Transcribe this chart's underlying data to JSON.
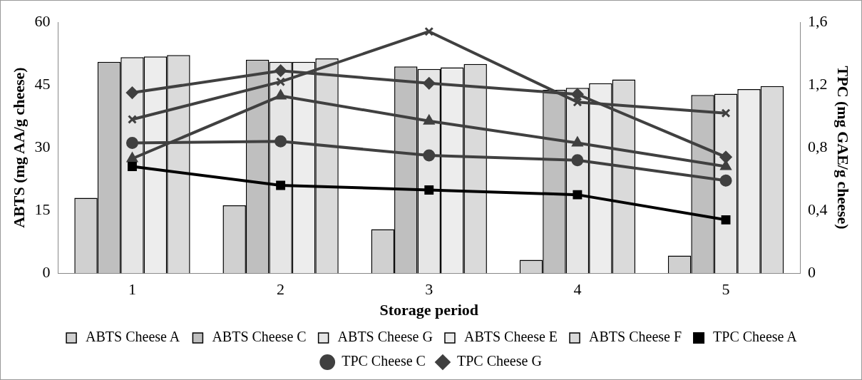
{
  "chart_data": {
    "type": "bar",
    "xlabel": "Storage period",
    "ylabel": "ABTS (mg AA/g cheese)",
    "y2label": "TPC (mg GAE/g cheese)",
    "categories": [
      "1",
      "2",
      "3",
      "4",
      "5"
    ],
    "ylim": [
      0,
      60
    ],
    "yticks": [
      0,
      15,
      30,
      45,
      60
    ],
    "y2lim": [
      0,
      1.6
    ],
    "y2ticks": [
      0,
      {
        "value": 0.4,
        "label": "0,4"
      },
      {
        "value": 0.8,
        "label": "0,8"
      },
      {
        "value": 1.2,
        "label": "1,2"
      },
      {
        "value": 1.6,
        "label": "1,6"
      }
    ],
    "grid": false,
    "legend": "bottom",
    "series": [
      {
        "name": "ABTS Cheese A",
        "color": "#d0d0d0",
        "values": [
          18.0,
          16.2,
          10.5,
          3.2,
          4.2
        ]
      },
      {
        "name": "ABTS Cheese C",
        "color": "#bfbfbf",
        "values": [
          50.5,
          51.0,
          49.4,
          43.8,
          42.6
        ]
      },
      {
        "name": "ABTS Cheese G",
        "color": "#e6e6e6",
        "values": [
          51.6,
          50.5,
          48.8,
          44.3,
          42.9
        ]
      },
      {
        "name": "ABTS Cheese E",
        "color": "#ededed",
        "values": [
          51.8,
          50.5,
          49.2,
          45.4,
          44.0
        ]
      },
      {
        "name": "ABTS Cheese F",
        "color": "#dadada",
        "values": [
          52.1,
          51.3,
          50.0,
          46.3,
          44.7
        ]
      },
      {
        "name": "TPC Cheese A",
        "type": "line",
        "axis": "y2",
        "marker": "square",
        "color": "#000000",
        "values": [
          0.68,
          0.56,
          0.53,
          0.5,
          0.34
        ]
      },
      {
        "name": "TPC Cheese C",
        "type": "line",
        "axis": "y2",
        "marker": "circle",
        "color": "#404040",
        "values": [
          0.83,
          0.84,
          0.75,
          0.72,
          0.59
        ]
      },
      {
        "name": "TPC Cheese G",
        "type": "line",
        "axis": "y2",
        "marker": "diamond",
        "color": "#404040",
        "values": [
          1.15,
          1.29,
          1.21,
          1.14,
          0.74
        ]
      },
      {
        "type": "line",
        "axis": "y2",
        "marker": "triangle",
        "color": "#404040",
        "values": [
          0.73,
          1.13,
          0.97,
          0.83,
          0.68
        ]
      },
      {
        "type": "line",
        "axis": "y2",
        "marker": "cross",
        "color": "#404040",
        "values": [
          0.98,
          1.22,
          1.54,
          1.09,
          1.02
        ]
      }
    ]
  }
}
